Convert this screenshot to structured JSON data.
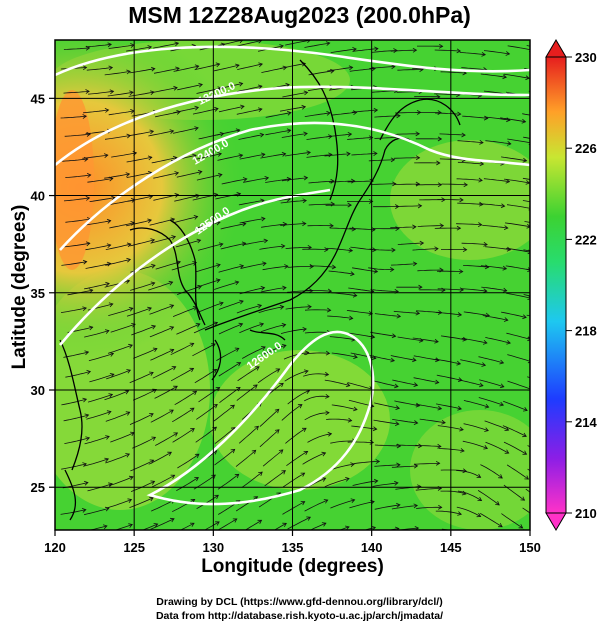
{
  "title": "MSM 12Z28Aug2023 (200.0hPa)",
  "x_axis": {
    "label": "Longitude (degrees)",
    "ticks": [
      120,
      125,
      130,
      135,
      140,
      145,
      150
    ]
  },
  "y_axis": {
    "label": "Latitude  (degrees)",
    "ticks": [
      25,
      30,
      35,
      40,
      45
    ]
  },
  "colorbar": {
    "ticks": [
      210,
      214,
      218,
      222,
      226,
      230
    ],
    "min": 210,
    "max": 230
  },
  "contours": [
    {
      "label": "12300.0"
    },
    {
      "label": "12400.0"
    },
    {
      "label": "12500.0"
    },
    {
      "label": "12600.0"
    }
  ],
  "credits": {
    "line1": "Drawing by DCL (https://www.gfd-dennou.org/library/dcl/)",
    "line2": "Data from http://database.rish.kyoto-u.ac.jp/arch/jmadata/"
  },
  "colors": {
    "field_main": "#46d232",
    "field_warm": "#d2dc3c",
    "hot": "#ff8c28",
    "contour": "#ffffff"
  }
}
